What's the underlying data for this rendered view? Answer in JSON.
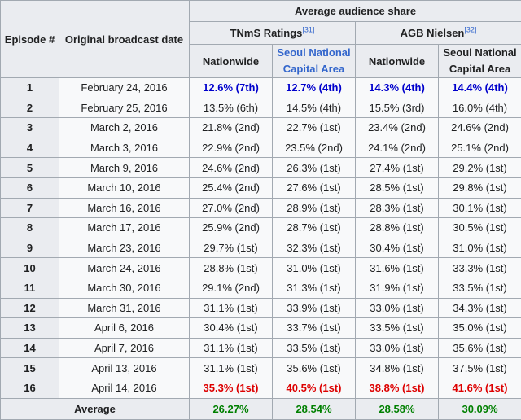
{
  "headers": {
    "episode": "Episode #",
    "date": "Original broadcast date",
    "average_share": "Average audience share",
    "tnms": "TNmS Ratings",
    "tnms_ref": "[31]",
    "agb": "AGB Nielsen",
    "agb_ref": "[32]",
    "nationwide": "Nationwide",
    "seoul_tnms": "Seoul National Capital Area",
    "seoul_agb": "Seoul National Capital Area"
  },
  "rows": [
    {
      "ep": "1",
      "date": "February 24, 2016",
      "tnms_nat": "12.6% (7th)",
      "tnms_seoul": "12.7% (4th)",
      "agb_nat": "14.3% (4th)",
      "agb_seoul": "14.4% (4th)"
    },
    {
      "ep": "2",
      "date": "February 25, 2016",
      "tnms_nat": "13.5% (6th)",
      "tnms_seoul": "14.5% (4th)",
      "agb_nat": "15.5% (3rd)",
      "agb_seoul": "16.0% (4th)"
    },
    {
      "ep": "3",
      "date": "March 2, 2016",
      "tnms_nat": "21.8% (2nd)",
      "tnms_seoul": "22.7% (1st)",
      "agb_nat": "23.4% (2nd)",
      "agb_seoul": "24.6% (2nd)"
    },
    {
      "ep": "4",
      "date": "March 3, 2016",
      "tnms_nat": "22.9% (2nd)",
      "tnms_seoul": "23.5% (2nd)",
      "agb_nat": "24.1% (2nd)",
      "agb_seoul": "25.1% (2nd)"
    },
    {
      "ep": "5",
      "date": "March 9, 2016",
      "tnms_nat": "24.6% (2nd)",
      "tnms_seoul": "26.3% (1st)",
      "agb_nat": "27.4% (1st)",
      "agb_seoul": "29.2% (1st)"
    },
    {
      "ep": "6",
      "date": "March 10, 2016",
      "tnms_nat": "25.4% (2nd)",
      "tnms_seoul": "27.6% (1st)",
      "agb_nat": "28.5% (1st)",
      "agb_seoul": "29.8% (1st)"
    },
    {
      "ep": "7",
      "date": "March 16, 2016",
      "tnms_nat": "27.0% (2nd)",
      "tnms_seoul": "28.9% (1st)",
      "agb_nat": "28.3% (1st)",
      "agb_seoul": "30.1% (1st)"
    },
    {
      "ep": "8",
      "date": "March 17, 2016",
      "tnms_nat": "25.9% (2nd)",
      "tnms_seoul": "28.7% (1st)",
      "agb_nat": "28.8% (1st)",
      "agb_seoul": "30.5% (1st)"
    },
    {
      "ep": "9",
      "date": "March 23, 2016",
      "tnms_nat": "29.7% (1st)",
      "tnms_seoul": "32.3% (1st)",
      "agb_nat": "30.4% (1st)",
      "agb_seoul": "31.0% (1st)"
    },
    {
      "ep": "10",
      "date": "March 24, 2016",
      "tnms_nat": "28.8% (1st)",
      "tnms_seoul": "31.0% (1st)",
      "agb_nat": "31.6% (1st)",
      "agb_seoul": "33.3% (1st)"
    },
    {
      "ep": "11",
      "date": "March 30, 2016",
      "tnms_nat": "29.1% (2nd)",
      "tnms_seoul": "31.3% (1st)",
      "agb_nat": "31.9% (1st)",
      "agb_seoul": "33.5% (1st)"
    },
    {
      "ep": "12",
      "date": "March 31, 2016",
      "tnms_nat": "31.1% (1st)",
      "tnms_seoul": "33.9% (1st)",
      "agb_nat": "33.0% (1st)",
      "agb_seoul": "34.3% (1st)"
    },
    {
      "ep": "13",
      "date": "April 6, 2016",
      "tnms_nat": "30.4% (1st)",
      "tnms_seoul": "33.7% (1st)",
      "agb_nat": "33.5% (1st)",
      "agb_seoul": "35.0% (1st)"
    },
    {
      "ep": "14",
      "date": "April 7, 2016",
      "tnms_nat": "31.1% (1st)",
      "tnms_seoul": "33.5% (1st)",
      "agb_nat": "33.0% (1st)",
      "agb_seoul": "35.6% (1st)"
    },
    {
      "ep": "15",
      "date": "April 13, 2016",
      "tnms_nat": "31.1% (1st)",
      "tnms_seoul": "35.6% (1st)",
      "agb_nat": "34.8% (1st)",
      "agb_seoul": "37.5% (1st)"
    },
    {
      "ep": "16",
      "date": "April 14, 2016",
      "tnms_nat": "35.3% (1st)",
      "tnms_seoul": "40.5% (1st)",
      "agb_nat": "38.8% (1st)",
      "agb_seoul": "41.6% (1st)"
    }
  ],
  "average": {
    "label": "Average",
    "tnms_nat": "26.27%",
    "tnms_seoul": "28.54%",
    "agb_nat": "28.58%",
    "agb_seoul": "30.09%"
  },
  "colors": {
    "lowest_highlight": "#0000cc",
    "highest_highlight": "#dd0000",
    "average_values": "#008000",
    "link": "#3366cc"
  }
}
